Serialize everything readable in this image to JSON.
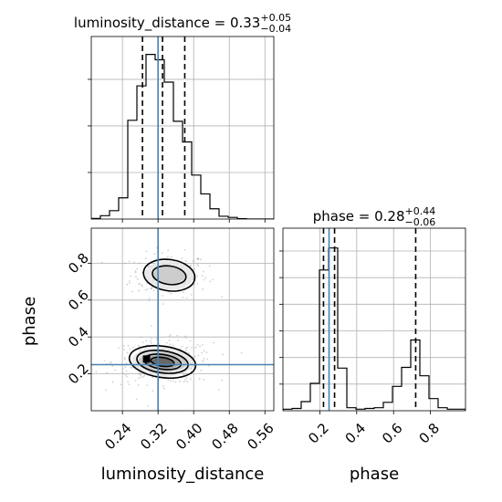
{
  "chart_data": [
    {
      "type": "histogram",
      "panel": "top-left",
      "parameter": "luminosity_distance",
      "title": {
        "prefix": "luminosity_distance = 0.33",
        "upper": "+0.05",
        "lower": "−0.04"
      },
      "xlim": [
        0.17,
        0.58
      ],
      "x_ticks": [
        0.24,
        0.32,
        0.4,
        0.48,
        0.56
      ],
      "ylim": [
        0,
        0.098
      ],
      "y_ticks": [
        0.025,
        0.05,
        0.075
      ],
      "bin_edges": [
        0.17,
        0.1905,
        0.211,
        0.2315,
        0.252,
        0.2725,
        0.293,
        0.3135,
        0.334,
        0.3545,
        0.375,
        0.3955,
        0.416,
        0.4365,
        0.457,
        0.4775,
        0.498,
        0.5185,
        0.539,
        0.5595,
        0.58
      ],
      "counts": [
        0.0003,
        0.0018,
        0.0045,
        0.0114,
        0.053,
        0.0715,
        0.0884,
        0.0855,
        0.0735,
        0.0525,
        0.0414,
        0.0236,
        0.0135,
        0.0055,
        0.0015,
        0.0009,
        0.0002,
        0,
        0,
        0
      ],
      "quantiles": [
        0.285,
        0.33,
        0.38
      ],
      "truth": 0.32,
      "grid": true
    },
    {
      "type": "histogram",
      "panel": "bottom-right",
      "parameter": "phase",
      "title": {
        "prefix": "phase = 0.28",
        "upper": "+0.44",
        "lower": "−0.06"
      },
      "xlim": [
        0.0,
        0.99
      ],
      "x_ticks": [
        0.2,
        0.4,
        0.6,
        0.8
      ],
      "ylim": [
        0,
        0.24
      ],
      "y_ticks": [
        0.035,
        0.07,
        0.105,
        0.14,
        0.175,
        0.21
      ],
      "bin_edges": [
        0.0,
        0.0495,
        0.099,
        0.1485,
        0.198,
        0.2475,
        0.297,
        0.3465,
        0.396,
        0.4455,
        0.495,
        0.5445,
        0.594,
        0.6435,
        0.693,
        0.7425,
        0.792,
        0.8415,
        0.891,
        0.9405,
        0.99
      ],
      "counts": [
        0.002,
        0.003,
        0.012,
        0.036,
        0.185,
        0.214,
        0.056,
        0.004,
        0.002,
        0.003,
        0.004,
        0.011,
        0.032,
        0.057,
        0.093,
        0.046,
        0.016,
        0.004,
        0.002,
        0.002
      ],
      "quantiles": [
        0.22,
        0.28,
        0.72
      ],
      "truth": 0.25,
      "grid": true
    },
    {
      "type": "2d-density",
      "panel": "bottom-left",
      "x_parameter": "luminosity_distance",
      "y_parameter": "phase",
      "xlim": [
        0.17,
        0.58
      ],
      "ylim": [
        0.0,
        0.99
      ],
      "x_ticks": [
        0.24,
        0.32,
        0.4,
        0.48,
        0.56
      ],
      "y_ticks": [
        0.2,
        0.4,
        0.6,
        0.8
      ],
      "truth": [
        0.32,
        0.25
      ],
      "modes": [
        {
          "center": [
            0.345,
            0.735
          ],
          "contours": [
            {
              "rx": 0.058,
              "ry": 0.085
            },
            {
              "rx": 0.038,
              "ry": 0.05
            }
          ]
        },
        {
          "center": [
            0.33,
            0.265
          ],
          "contours": [
            {
              "rx": 0.075,
              "ry": 0.085
            },
            {
              "rx": 0.058,
              "ry": 0.06
            },
            {
              "rx": 0.042,
              "ry": 0.04
            },
            {
              "rx": 0.026,
              "ry": 0.024
            }
          ]
        }
      ],
      "grid": true
    }
  ],
  "axis_labels": {
    "x_left": "luminosity_distance",
    "x_right": "phase",
    "y_left": "phase"
  },
  "colors": {
    "truth": "#4682b4",
    "contour": "#000000",
    "density_dark": "#333333"
  }
}
